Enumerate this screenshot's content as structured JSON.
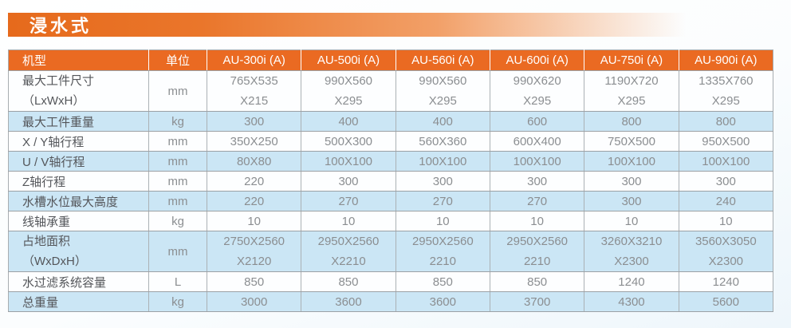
{
  "page": {
    "title": "浸水式",
    "colors": {
      "accent_orange": "#ea6a22",
      "row_blue": "#cbe6f5",
      "border_gray": "#9ca1a5",
      "label_text": "#54565a",
      "value_text": "#8b8e91"
    }
  },
  "table": {
    "header": {
      "model_col": "机型",
      "unit_col": "单位",
      "models": [
        "AU-300i (A)",
        "AU-500i (A)",
        "AU-560i (A)",
        "AU-600i (A)",
        "AU-750i (A)",
        "AU-900i (A)"
      ]
    },
    "rows": [
      {
        "label": [
          "最大工件尺寸",
          "（LxWxH）"
        ],
        "unit": "mm",
        "shaded": false,
        "values": [
          [
            "765X535",
            "X215"
          ],
          [
            "990X560",
            "X295"
          ],
          [
            "990X560",
            "X295"
          ],
          [
            "990X620",
            "X295"
          ],
          [
            "1190X720",
            "X295"
          ],
          [
            "1335X760",
            "X295"
          ]
        ]
      },
      {
        "label": [
          "最大工件重量"
        ],
        "unit": "kg",
        "shaded": true,
        "values": [
          [
            "300"
          ],
          [
            "400"
          ],
          [
            "400"
          ],
          [
            "600"
          ],
          [
            "800"
          ],
          [
            "800"
          ]
        ]
      },
      {
        "label": [
          "X / Y轴行程"
        ],
        "unit": "mm",
        "shaded": false,
        "values": [
          [
            "350X250"
          ],
          [
            "500X300"
          ],
          [
            "560X360"
          ],
          [
            "600X400"
          ],
          [
            "750X500"
          ],
          [
            "950X500"
          ]
        ]
      },
      {
        "label": [
          "U / V轴行程"
        ],
        "unit": "mm",
        "shaded": true,
        "values": [
          [
            "80X80"
          ],
          [
            "100X100"
          ],
          [
            "100X100"
          ],
          [
            "100X100"
          ],
          [
            "100X100"
          ],
          [
            "100X100"
          ]
        ]
      },
      {
        "label": [
          "Z轴行程"
        ],
        "unit": "mm",
        "shaded": false,
        "values": [
          [
            "220"
          ],
          [
            "300"
          ],
          [
            "300"
          ],
          [
            "300"
          ],
          [
            "300"
          ],
          [
            "300"
          ]
        ]
      },
      {
        "label": [
          "水槽水位最大高度"
        ],
        "unit": "mm",
        "shaded": true,
        "values": [
          [
            "220"
          ],
          [
            "270"
          ],
          [
            "270"
          ],
          [
            "270"
          ],
          [
            "300"
          ],
          [
            "240"
          ]
        ]
      },
      {
        "label": [
          "线轴承重"
        ],
        "unit": "kg",
        "shaded": false,
        "values": [
          [
            "10"
          ],
          [
            "10"
          ],
          [
            "10"
          ],
          [
            "10"
          ],
          [
            "10"
          ],
          [
            "10"
          ]
        ]
      },
      {
        "label": [
          "占地面积",
          "（WxDxH）"
        ],
        "unit": "mm",
        "shaded": true,
        "values": [
          [
            "2750X2560",
            "X2120"
          ],
          [
            "2950X2560",
            "X2210"
          ],
          [
            "2950X2560",
            "2210"
          ],
          [
            "2950X2560",
            "2210"
          ],
          [
            "3260X3210",
            "X2300"
          ],
          [
            "3560X3050",
            "X2300"
          ]
        ]
      },
      {
        "label": [
          "水过滤系统容量"
        ],
        "unit": "L",
        "shaded": false,
        "values": [
          [
            "850"
          ],
          [
            "850"
          ],
          [
            "850"
          ],
          [
            "850"
          ],
          [
            "1240"
          ],
          [
            "1240"
          ]
        ]
      },
      {
        "label": [
          "总重量"
        ],
        "unit": "kg",
        "shaded": true,
        "values": [
          [
            "3000"
          ],
          [
            "3600"
          ],
          [
            "3600"
          ],
          [
            "3700"
          ],
          [
            "4300"
          ],
          [
            "5600"
          ]
        ]
      }
    ]
  }
}
